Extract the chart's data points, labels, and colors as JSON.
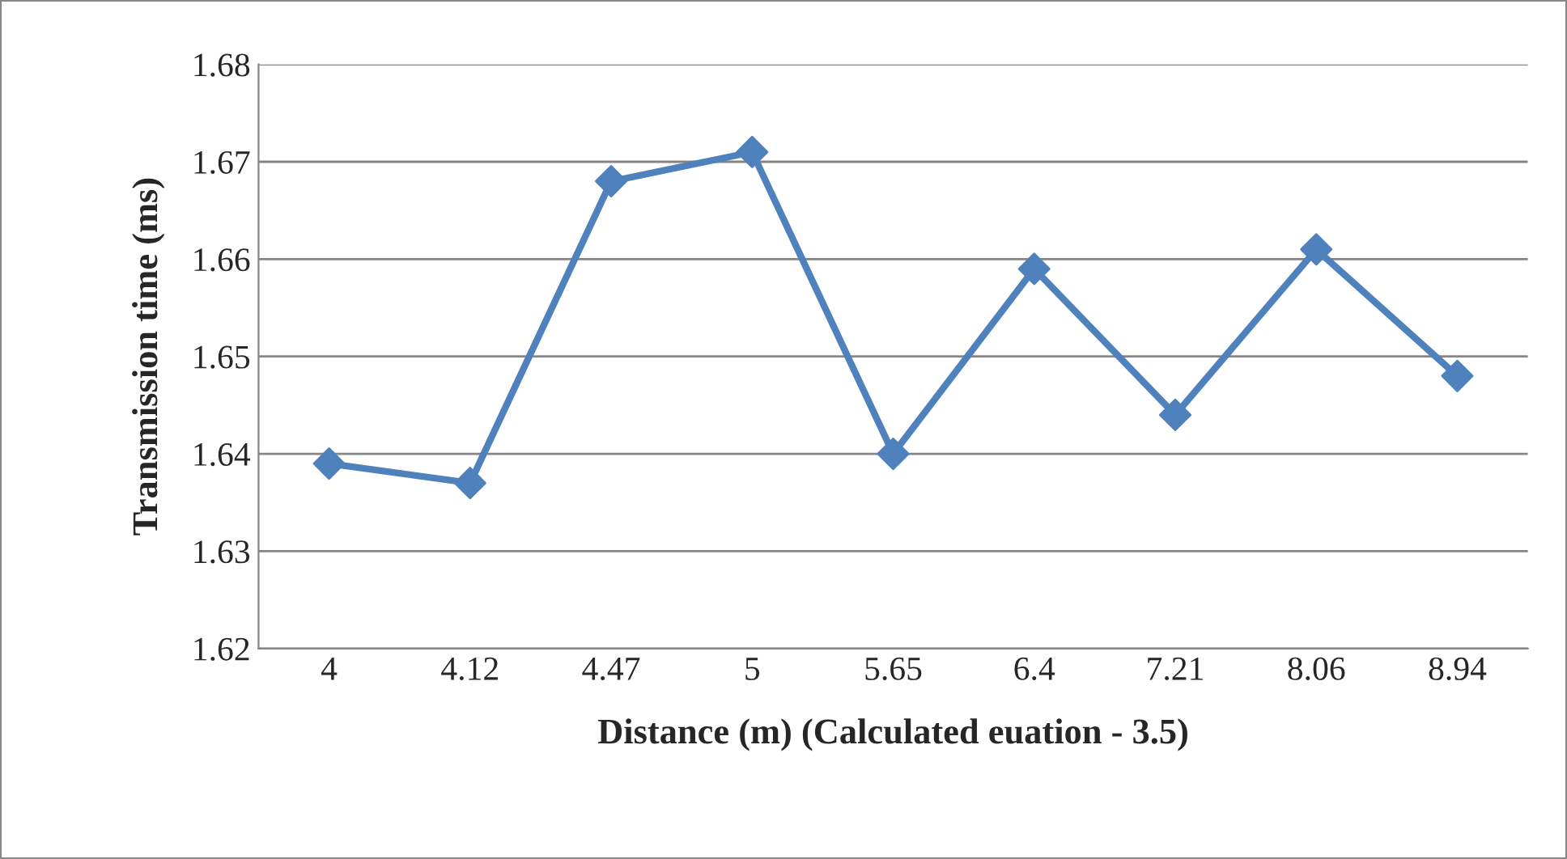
{
  "chart_data": {
    "type": "line",
    "xlabel": "Distance (m) (Calculated euation - 3.5)",
    "ylabel": "Transmission time (ms)",
    "categories": [
      "4",
      "4.12",
      "4.47",
      "5",
      "5.65",
      "6.4",
      "7.21",
      "8.06",
      "8.94"
    ],
    "series": [
      {
        "color": "#4f81bd",
        "values": [
          1.639,
          1.637,
          1.668,
          1.671,
          1.64,
          1.659,
          1.644,
          1.661,
          1.648
        ]
      }
    ],
    "ylim": [
      1.62,
      1.68
    ],
    "yticks": [
      1.62,
      1.63,
      1.64,
      1.65,
      1.66,
      1.67,
      1.68
    ],
    "grid": "y",
    "marker": "diamond",
    "line_style": "solid",
    "legend": false
  }
}
